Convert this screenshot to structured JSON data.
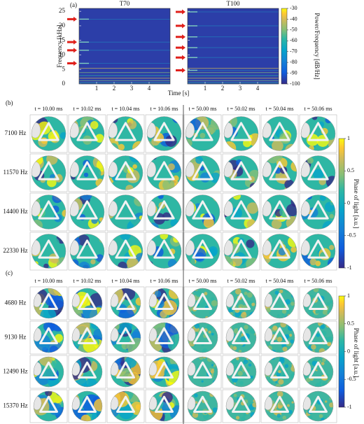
{
  "panel_a": {
    "label": "(a)",
    "x_label": "Time [s]",
    "y_label": "Frequency [kHz]",
    "xlim": [
      0,
      5.2
    ],
    "xticks": [
      1,
      2,
      3,
      4
    ],
    "ylim": [
      0,
      26
    ],
    "yticks": [
      0,
      5,
      10,
      15,
      20,
      25
    ],
    "plots": [
      {
        "title": "T70",
        "arrows": [
          22.3,
          14.4,
          11.6,
          7.1
        ]
      },
      {
        "title": "T100",
        "arrows": [
          24.8,
          20,
          16.2,
          12.5,
          9.1,
          4.7
        ]
      }
    ],
    "colorbar": {
      "label": "Power/Frequency [dB/Hz]",
      "lim": [
        -100,
        -30
      ],
      "ticks": [
        -30,
        -40,
        -50,
        -60,
        -70,
        -80,
        -90,
        -100
      ]
    }
  },
  "panel_b": {
    "label": "(b)",
    "times": [
      "t = 10.00 ms",
      "t = 10.02 ms",
      "t = 10.04 ms",
      "t = 10.06 ms",
      "t = 50.00 ms",
      "t = 50.02 ms",
      "t = 50.04 ms",
      "t = 50.06 ms"
    ],
    "rows": [
      "7100 Hz",
      "11570 Hz",
      "14400 Hz",
      "22330 Hz"
    ],
    "colorbar": {
      "label": "Phase of light [a.u.]",
      "lim": [
        -1,
        1
      ],
      "ticks": [
        1,
        0.5,
        0,
        -0.5,
        -1
      ]
    }
  },
  "panel_c": {
    "label": "(c)",
    "times": [
      "t = 10.00 ms",
      "t = 10.02 ms",
      "t = 10.04 ms",
      "t = 10.06 ms",
      "t = 50.00 ms",
      "t = 50.02 ms",
      "t = 50.04 ms",
      "t = 50.06 ms"
    ],
    "rows": [
      "4680 Hz",
      "9130 Hz",
      "12490 Hz",
      "15370 Hz"
    ],
    "colorbar": {
      "label": "Phase of light [a.u.]",
      "lim": [
        -1,
        1
      ],
      "ticks": [
        1,
        0.5,
        0,
        -0.5,
        -1
      ]
    }
  }
}
